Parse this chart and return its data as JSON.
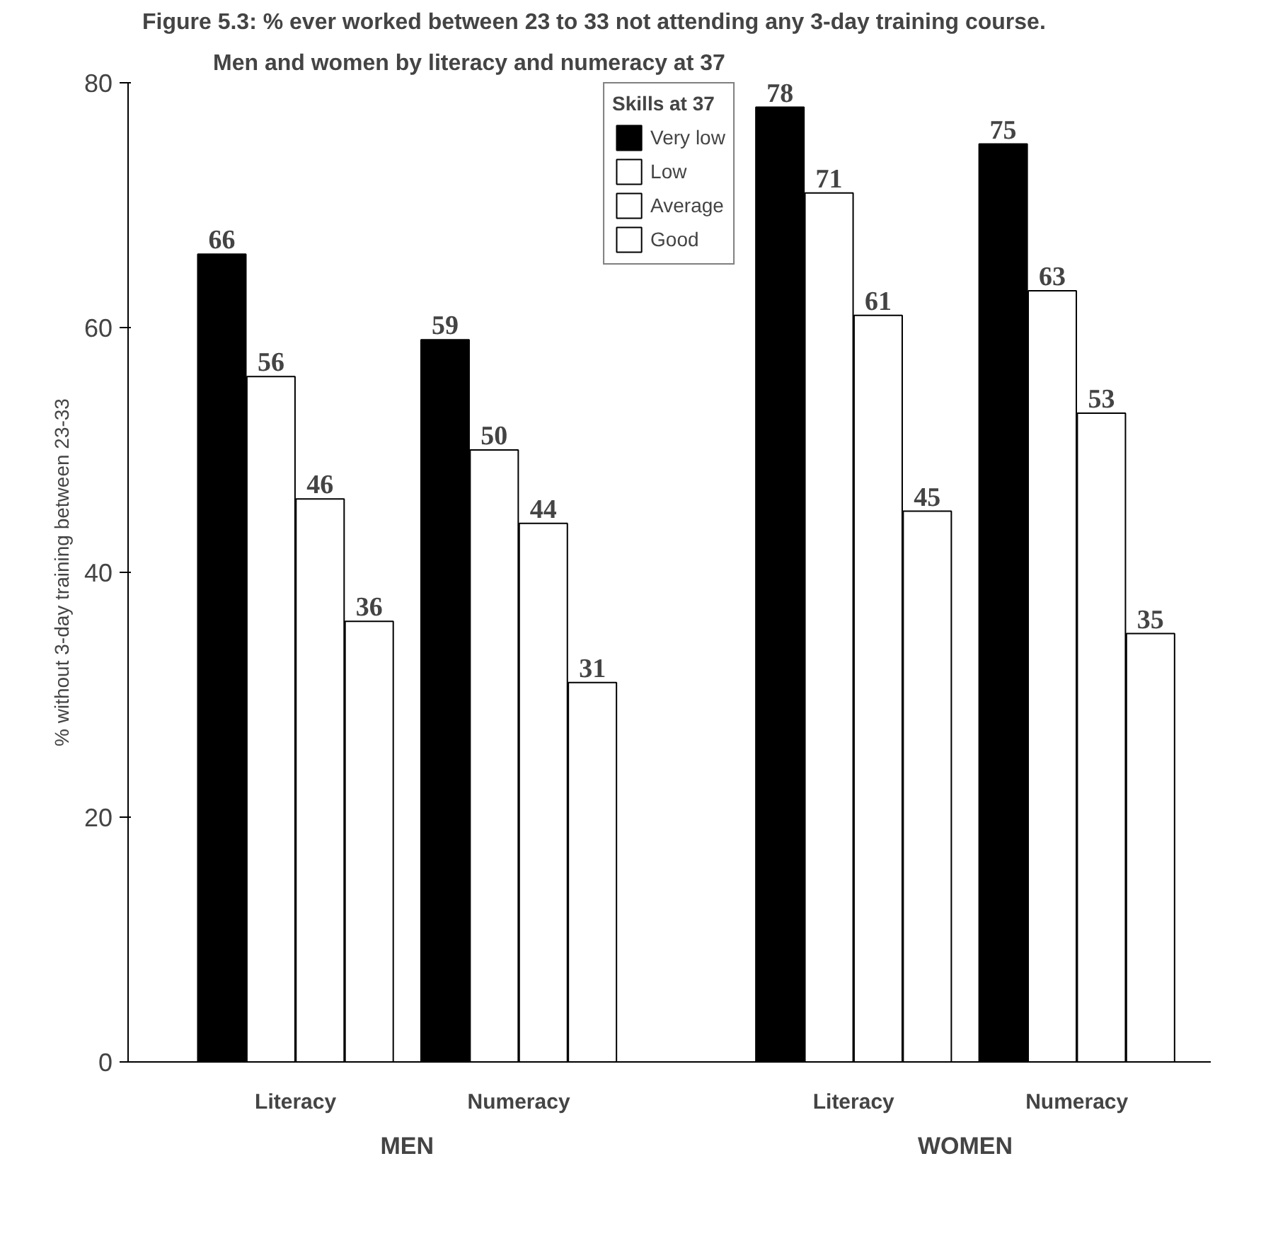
{
  "chart_data": {
    "type": "bar",
    "title": "Figure 5.3: % ever worked between 23 to 33 not attending any 3-day training course.",
    "subtitle": "Men and women by literacy and numeracy at 37",
    "ylabel": "% without 3-day training between 23-33",
    "legend_title": "Skills at 37",
    "categories": [
      "Literacy",
      "Numeracy",
      "Literacy",
      "Numeracy"
    ],
    "series": [
      {
        "name": "Very low",
        "color": "#000000",
        "values": [
          66,
          59,
          78,
          75
        ]
      },
      {
        "name": "Low",
        "color": "#ffffff",
        "values": [
          56,
          50,
          71,
          63
        ]
      },
      {
        "name": "Average",
        "color": "#ffffff",
        "values": [
          46,
          44,
          61,
          53
        ]
      },
      {
        "name": "Good",
        "color": "#ffffff",
        "values": [
          36,
          31,
          45,
          35
        ]
      }
    ],
    "annotations": [
      "MEN",
      "WOMEN"
    ],
    "ylim": [
      0,
      80
    ],
    "yticks": [
      0,
      20,
      40,
      60,
      80
    ],
    "grid": false,
    "legend": "top",
    "data_labels": true
  }
}
